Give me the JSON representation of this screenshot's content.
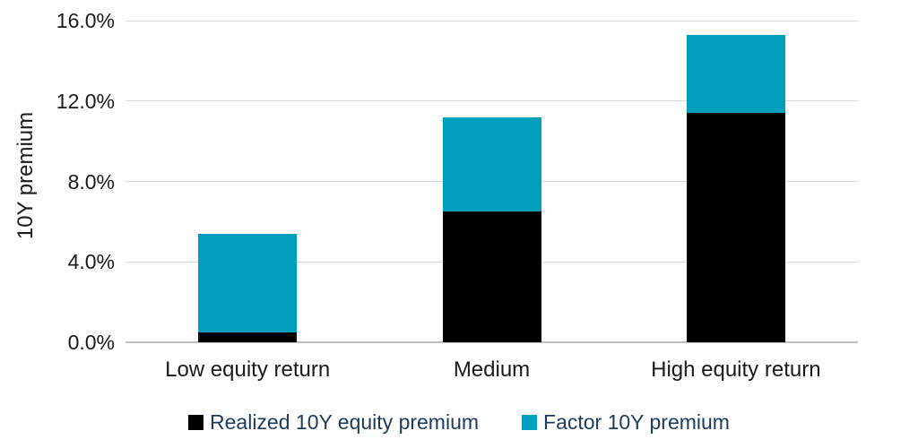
{
  "chart_data": {
    "type": "bar",
    "variant": "stacked-vertical",
    "title": "",
    "ylabel": "10Y premium",
    "xlabel": "",
    "categories": [
      "Low equity return",
      "Medium",
      "High equity return"
    ],
    "series": [
      {
        "name": "Realized 10Y equity premium",
        "color": "#000000",
        "values": [
          0.5,
          6.5,
          11.4
        ]
      },
      {
        "name": "Factor 10Y premium",
        "color": "#009fbe",
        "values": [
          4.9,
          4.7,
          3.9
        ]
      }
    ],
    "totals": [
      5.4,
      11.2,
      15.3
    ],
    "ylim": [
      0,
      16
    ],
    "ytick_step": 4,
    "yticks": [
      {
        "value": 0,
        "label": "0.0%"
      },
      {
        "value": 4,
        "label": "4.0%"
      },
      {
        "value": 8,
        "label": "8.0%"
      },
      {
        "value": 12,
        "label": "12.0%"
      },
      {
        "value": 16,
        "label": "16.0%"
      }
    ],
    "grid": "horizontal",
    "legend_position": "bottom"
  },
  "colors": {
    "background": "#ffffff",
    "gridline": "#d9d9d9",
    "axis_baseline": "#bfbfbf",
    "axis_text": "#1a1a1a",
    "legend_text": "#1e3a5e",
    "realized_series": "#000000",
    "factor_series": "#009fbe"
  },
  "legend": {
    "items": [
      {
        "label": "Realized 10Y equity premium",
        "color": "#000000",
        "swatch": "black-square-icon"
      },
      {
        "label": "Factor 10Y premium",
        "color": "#009fbe",
        "swatch": "teal-square-icon"
      }
    ]
  }
}
